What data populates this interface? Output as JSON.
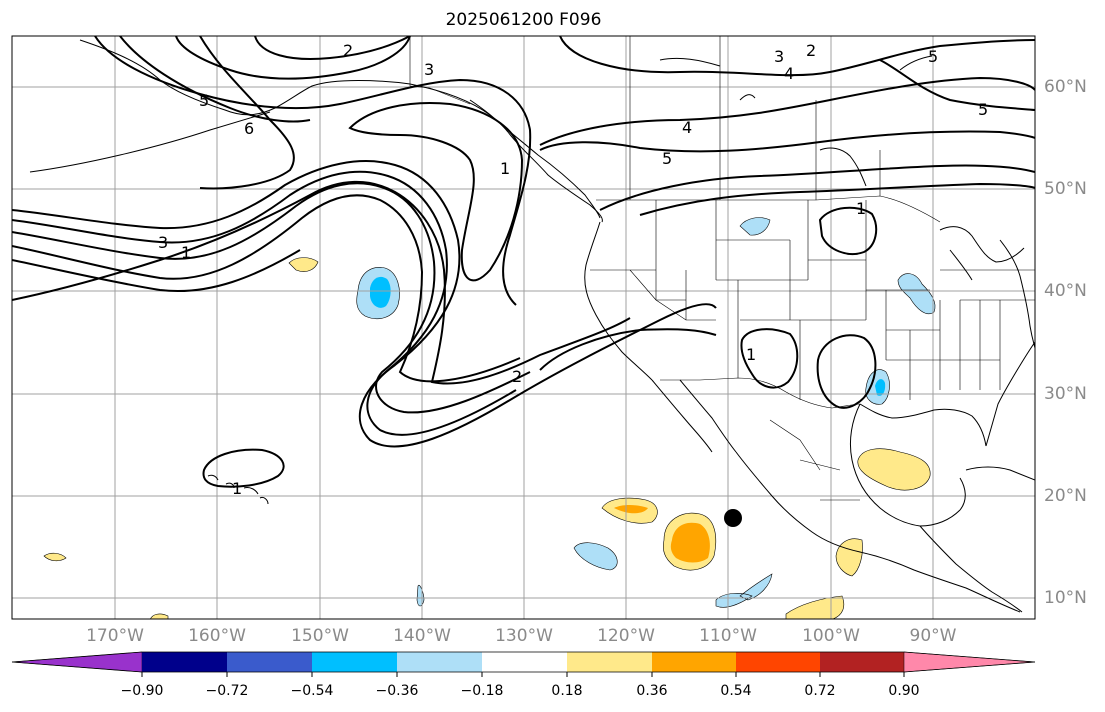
{
  "title": "2025061200 F096",
  "map": {
    "extent_lon": [
      -180,
      -80
    ],
    "extent_lat": [
      8,
      65
    ],
    "lat_labels": [
      "60°N",
      "50°N",
      "40°N",
      "30°N",
      "20°N",
      "10°N"
    ],
    "lat_values": [
      60,
      50,
      40,
      30,
      20,
      10
    ],
    "lon_labels": [
      "170°W",
      "160°W",
      "150°W",
      "140°W",
      "130°W",
      "120°W",
      "110°W",
      "100°W",
      "90°W"
    ],
    "lon_values": [
      -170,
      -160,
      -150,
      -140,
      -130,
      -120,
      -110,
      -100,
      -90
    ],
    "contour_labels": [
      "2",
      "3",
      "3",
      "2",
      "4",
      "5",
      "6",
      "5",
      "1",
      "3",
      "5",
      "4",
      "5",
      "1",
      "1",
      "2",
      "1",
      "1"
    ],
    "marker": {
      "lon": -109.5,
      "lat": 17.7,
      "label": ""
    }
  },
  "colorbar": {
    "ticks": [
      "−0.90",
      "−0.72",
      "−0.54",
      "−0.36",
      "−0.18",
      "0.18",
      "0.36",
      "0.54",
      "0.72",
      "0.90"
    ],
    "colors": [
      "#9932cc",
      "#00008b",
      "#3a5bcc",
      "#00bfff",
      "#aedff7",
      "#ffffff",
      "#ffe98a",
      "#ffa500",
      "#ff4500",
      "#b22222",
      "#ff88aa"
    ]
  }
}
